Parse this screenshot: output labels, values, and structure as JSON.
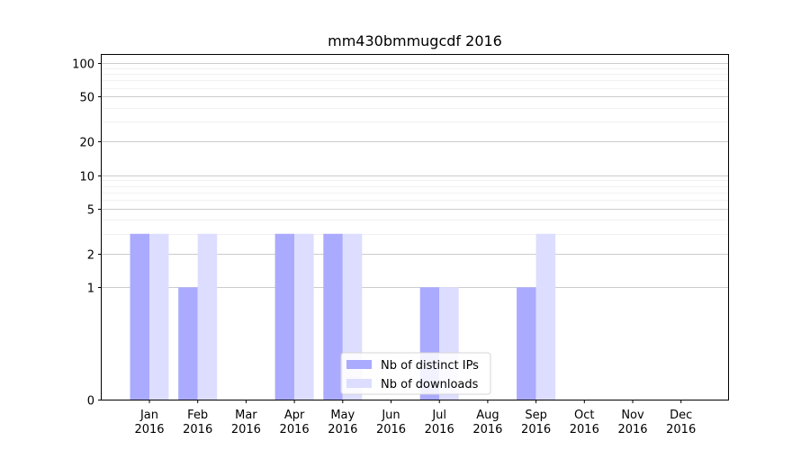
{
  "chart_data": {
    "type": "bar",
    "title": "mm430bmmugcdf 2016",
    "xlabel": "",
    "ylabel": "",
    "y_scale": "symlog",
    "ylim": [
      0,
      120
    ],
    "y_ticks": [
      0,
      1,
      2,
      5,
      10,
      20,
      50,
      100
    ],
    "categories": [
      "Jan\n2016",
      "Feb\n2016",
      "Mar\n2016",
      "Apr\n2016",
      "May\n2016",
      "Jun\n2016",
      "Jul\n2016",
      "Aug\n2016",
      "Sep\n2016",
      "Oct\n2016",
      "Nov\n2016",
      "Dec\n2016"
    ],
    "series": [
      {
        "name": "Nb of distinct IPs",
        "color": "#aaaaff",
        "values": [
          3,
          1,
          0,
          3,
          3,
          0,
          1,
          0,
          1,
          0,
          0,
          0
        ]
      },
      {
        "name": "Nb of downloads",
        "color": "#ddddff",
        "values": [
          3,
          3,
          0,
          3,
          3,
          0,
          1,
          0,
          3,
          0,
          0,
          0
        ]
      }
    ],
    "legend_position": "bottom-center",
    "grid": true
  }
}
